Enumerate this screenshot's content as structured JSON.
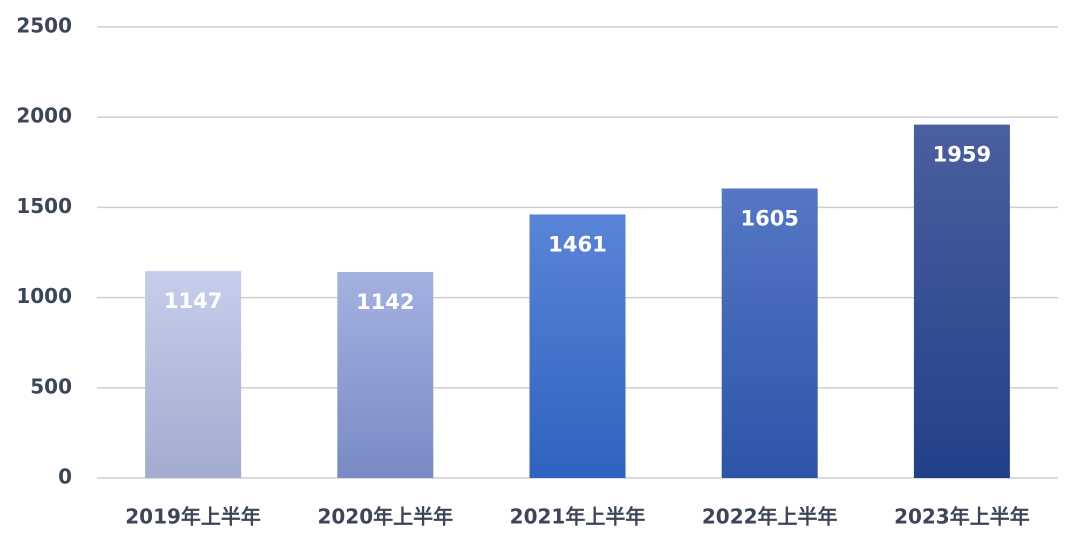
{
  "chart_data": {
    "type": "bar",
    "categories": [
      "2019年上半年",
      "2020年上半年",
      "2021年上半年",
      "2022年上半年",
      "2023年上半年"
    ],
    "values": [
      1147,
      1142,
      1461,
      1605,
      1959
    ],
    "colors": [
      [
        "#c6ceeb",
        "#a3abcf"
      ],
      [
        "#a4b2e1",
        "#798ac4"
      ],
      [
        "#5b84d7",
        "#2f62c0"
      ],
      [
        "#5577c5",
        "#2e54a8"
      ],
      [
        "#4a5f9e",
        "#22408a"
      ]
    ],
    "ylim": [
      0,
      2500
    ],
    "yticks": [
      0,
      500,
      1000,
      1500,
      2000,
      2500
    ],
    "grid": true
  }
}
